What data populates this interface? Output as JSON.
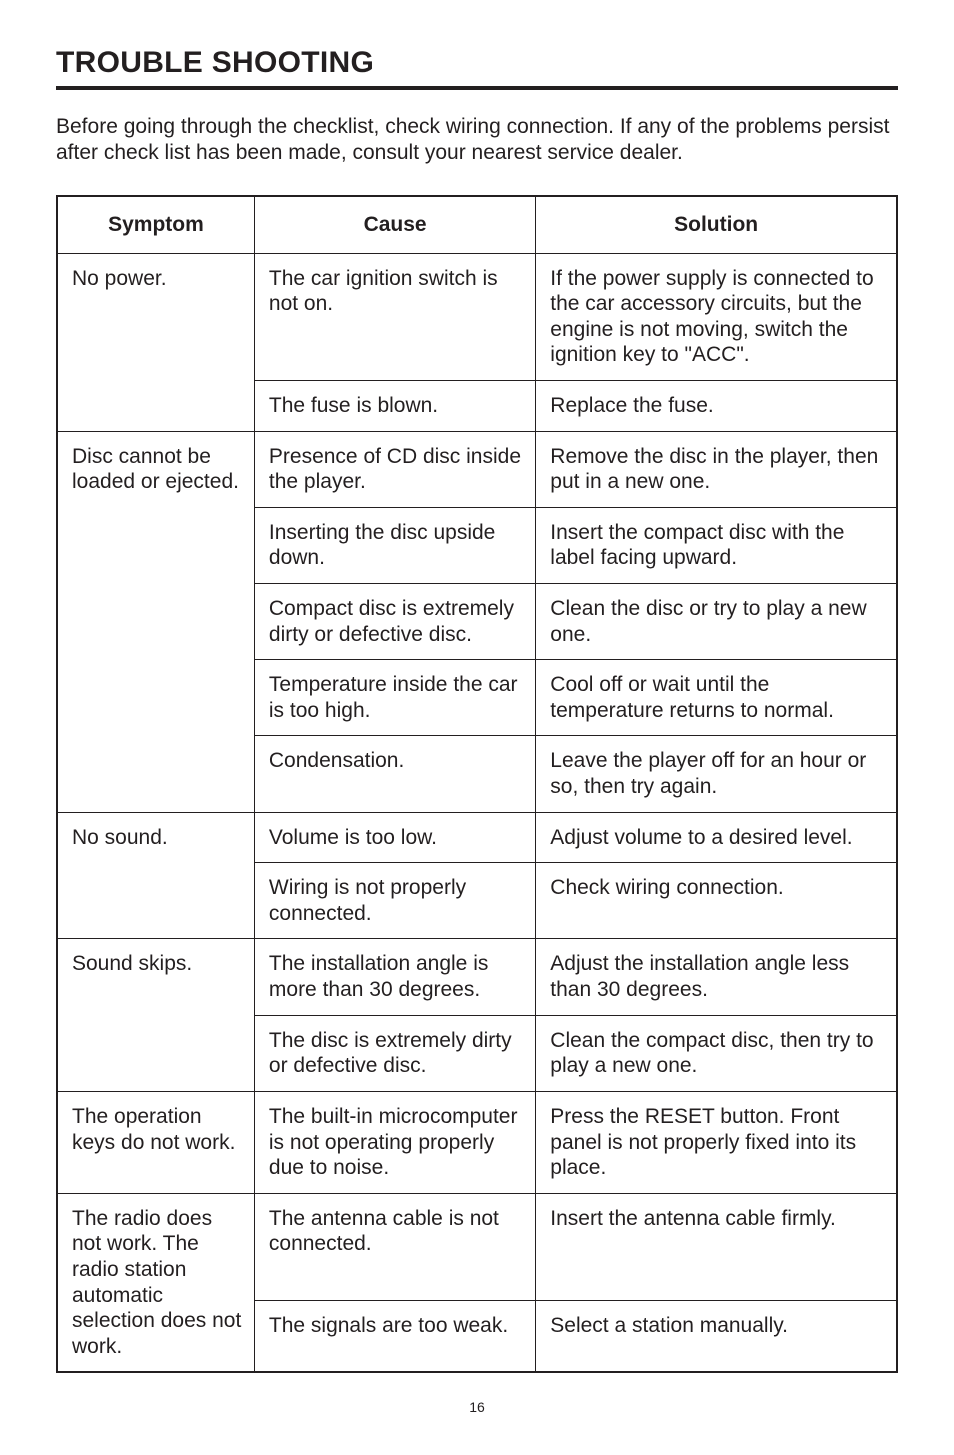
{
  "heading": "TROUBLE SHOOTING",
  "intro": "Before going through the checklist, check wiring connection.  If any of the problems persist after check list has been made, consult your nearest service dealer.",
  "table": {
    "headers": [
      "Symptom",
      "Cause",
      "Solution"
    ],
    "rows": [
      {
        "symptom": "No power.",
        "symptom_rowspan": 2,
        "cause": "The car ignition switch is not on.",
        "solution": "If the power supply is connected to the car accessory circuits, but the engine is not moving, switch the ignition key to \"ACC\"."
      },
      {
        "cause": "The fuse is blown.",
        "solution": "Replace the fuse."
      },
      {
        "symptom": "Disc cannot be loaded or ejected.",
        "symptom_rowspan": 5,
        "cause": "Presence of CD disc inside the player.",
        "solution": "Remove the disc in the player, then put in a new one."
      },
      {
        "cause": "Inserting the disc upside down.",
        "solution": "Insert the compact disc with the label facing upward."
      },
      {
        "cause": "Compact disc is extremely dirty or defective disc.",
        "solution": "Clean the disc or try to play a new one."
      },
      {
        "cause": "Temperature inside the car is too high.",
        "solution": "Cool off or wait until the temperature returns to normal."
      },
      {
        "cause": "Condensation.",
        "solution": "Leave the player off for an hour or so, then try again."
      },
      {
        "symptom": "No sound.",
        "symptom_rowspan": 2,
        "cause": "Volume is too low.",
        "solution": "Adjust volume to a desired level."
      },
      {
        "cause": "Wiring is not properly connected.",
        "solution": "Check wiring connection."
      },
      {
        "symptom": "Sound skips.",
        "symptom_rowspan": 2,
        "cause": "The installation angle is more than 30 degrees.",
        "solution": "Adjust the installation angle less than 30 degrees."
      },
      {
        "cause": "The disc is extremely dirty or defective disc.",
        "solution": "Clean the compact disc, then try to play a new one."
      },
      {
        "symptom": "The operation keys do not work.",
        "symptom_rowspan": 1,
        "cause": "The built-in microcomputer is not operating properly due to noise.",
        "solution": "Press the RESET button.\nFront panel is not properly fixed into its place."
      },
      {
        "symptom": "The radio does not work.  The radio station automatic selection does not work.",
        "symptom_rowspan": 2,
        "cause": "The antenna cable is not connected.",
        "solution": "Insert the antenna cable firmly."
      },
      {
        "cause": "The signals are too weak.",
        "solution": "Select a station manually."
      }
    ]
  },
  "page_number": "16",
  "colors": {
    "text": "#231f20",
    "background": "#ffffff",
    "border": "#231f20"
  }
}
